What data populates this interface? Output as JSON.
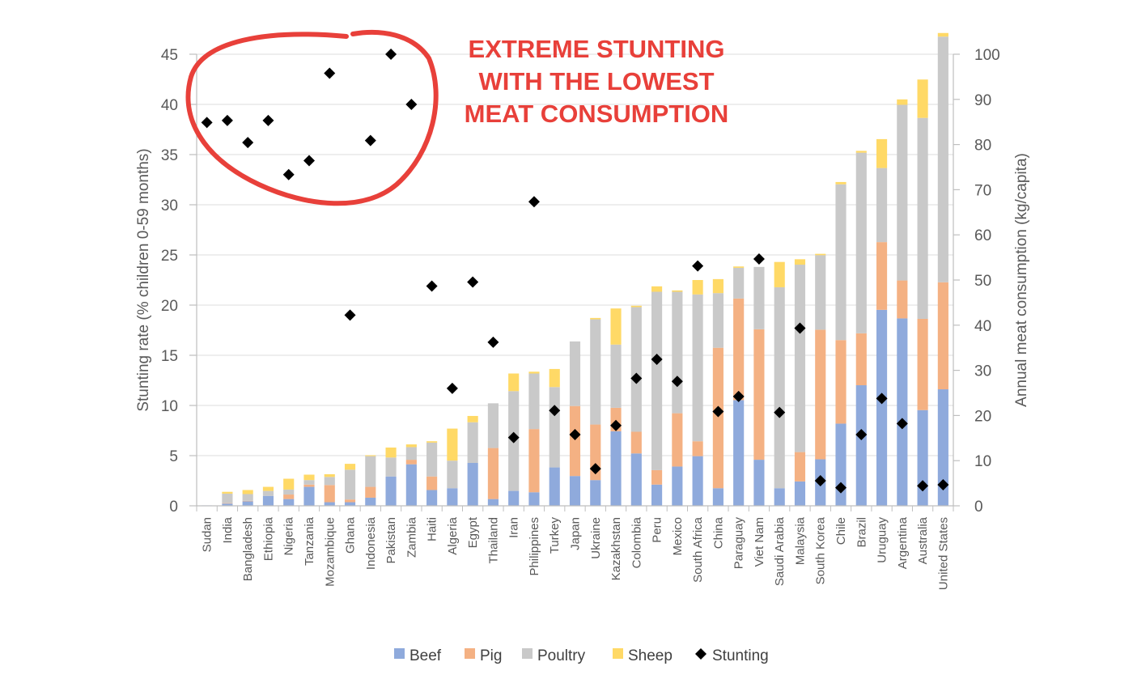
{
  "chart_data": {
    "type": "bar",
    "subtype": "stacked bar with scatter overlay",
    "categories": [
      "Sudan",
      "India",
      "Bangladesh",
      "Ethiopia",
      "Nigeria",
      "Tanzania",
      "Mozambique",
      "Ghana",
      "Indonesia",
      "Pakistan",
      "Zambia",
      "Haiti",
      "Algeria",
      "Egypt",
      "Thailand",
      "Iran",
      "Philippines",
      "Turkey",
      "Japan",
      "Ukraine",
      "Kazakhstan",
      "Colombia",
      "Peru",
      "Mexico",
      "South Africa",
      "China",
      "Paraguay",
      "Viet Nam",
      "Saudi Arabia",
      "Malaysia",
      "South Korea",
      "Chile",
      "Brazil",
      "Uruguay",
      "Argentina",
      "Australia",
      "United States"
    ],
    "series": [
      {
        "name": "Beef",
        "axis": "right",
        "color": "#8faadc",
        "values": [
          0.1,
          0.5,
          1.0,
          2.2,
          1.5,
          4.2,
          0.8,
          0.8,
          1.8,
          6.5,
          9.2,
          3.5,
          3.9,
          9.5,
          1.5,
          3.3,
          3.0,
          8.5,
          6.6,
          5.7,
          16.5,
          11.6,
          4.7,
          8.7,
          11.0,
          3.9,
          23.4,
          10.2,
          3.9,
          5.4,
          10.3,
          18.2,
          26.7,
          43.4,
          41.5,
          21.2,
          25.8
        ]
      },
      {
        "name": "Pig",
        "axis": "right",
        "color": "#f4b183",
        "values": [
          0.0,
          0.1,
          0.1,
          0.0,
          1.0,
          0.5,
          3.8,
          0.6,
          2.4,
          0.0,
          1.0,
          3.0,
          0.0,
          0.0,
          11.3,
          0.0,
          14.0,
          0.0,
          15.5,
          12.3,
          5.2,
          4.8,
          3.2,
          11.8,
          3.3,
          31.1,
          22.5,
          28.9,
          0.0,
          6.5,
          28.7,
          18.5,
          11.5,
          15.0,
          8.4,
          20.2,
          23.7
        ]
      },
      {
        "name": "Poultry",
        "axis": "right",
        "color": "#c9c9c9",
        "values": [
          0.0,
          2.1,
          1.5,
          1.1,
          1.1,
          1.0,
          1.8,
          6.6,
          6.8,
          4.2,
          2.8,
          7.5,
          6.1,
          9.0,
          9.9,
          22.1,
          12.3,
          17.8,
          14.3,
          23.3,
          14.0,
          27.6,
          39.5,
          26.9,
          32.5,
          12.1,
          6.8,
          13.8,
          44.5,
          41.5,
          16.5,
          34.5,
          40.0,
          16.4,
          38.9,
          44.5,
          54.4
        ]
      },
      {
        "name": "Sheep",
        "axis": "right",
        "color": "#ffd966",
        "values": [
          0.0,
          0.4,
          0.9,
          0.9,
          2.4,
          1.2,
          0.6,
          1.3,
          0.2,
          2.2,
          0.6,
          0.3,
          7.1,
          1.4,
          0.0,
          3.9,
          0.4,
          4.0,
          0.0,
          0.3,
          8.0,
          0.3,
          1.2,
          0.3,
          3.2,
          3.1,
          0.3,
          0.0,
          5.6,
          1.2,
          0.3,
          0.5,
          0.4,
          6.4,
          1.2,
          8.5,
          0.8
        ]
      },
      {
        "name": "Stunting",
        "axis": "left",
        "marker": "diamond",
        "color": "#000000",
        "values": [
          38.2,
          38.4,
          36.2,
          38.4,
          33.0,
          34.4,
          43.1,
          19.0,
          36.4,
          45.0,
          40.0,
          21.9,
          11.7,
          22.3,
          16.3,
          6.8,
          30.3,
          9.5,
          7.1,
          3.7,
          8.0,
          12.7,
          14.6,
          12.4,
          23.9,
          9.4,
          10.9,
          24.6,
          9.3,
          17.7,
          2.5,
          1.8,
          7.1,
          10.7,
          8.2,
          2.0,
          2.1
        ]
      }
    ],
    "ylabel": "Stunting rate (% children 0-59 months)",
    "y2label": "Annual meat consumption (kg/capita)",
    "ylim": [
      0,
      45
    ],
    "y2lim": [
      0,
      100
    ],
    "yticks": [
      0,
      5,
      10,
      15,
      20,
      25,
      30,
      35,
      40,
      45
    ],
    "y2ticks": [
      0,
      10,
      20,
      30,
      40,
      50,
      60,
      70,
      80,
      90,
      100
    ],
    "grid": true,
    "legend_position": "bottom",
    "annotation": {
      "lines": [
        "EXTREME STUNTING",
        "WITH THE LOWEST",
        "MEAT CONSUMPTION"
      ],
      "color": "#e8403a",
      "highlight": "red hand-drawn circle around low-consumption high-stunting points"
    }
  }
}
